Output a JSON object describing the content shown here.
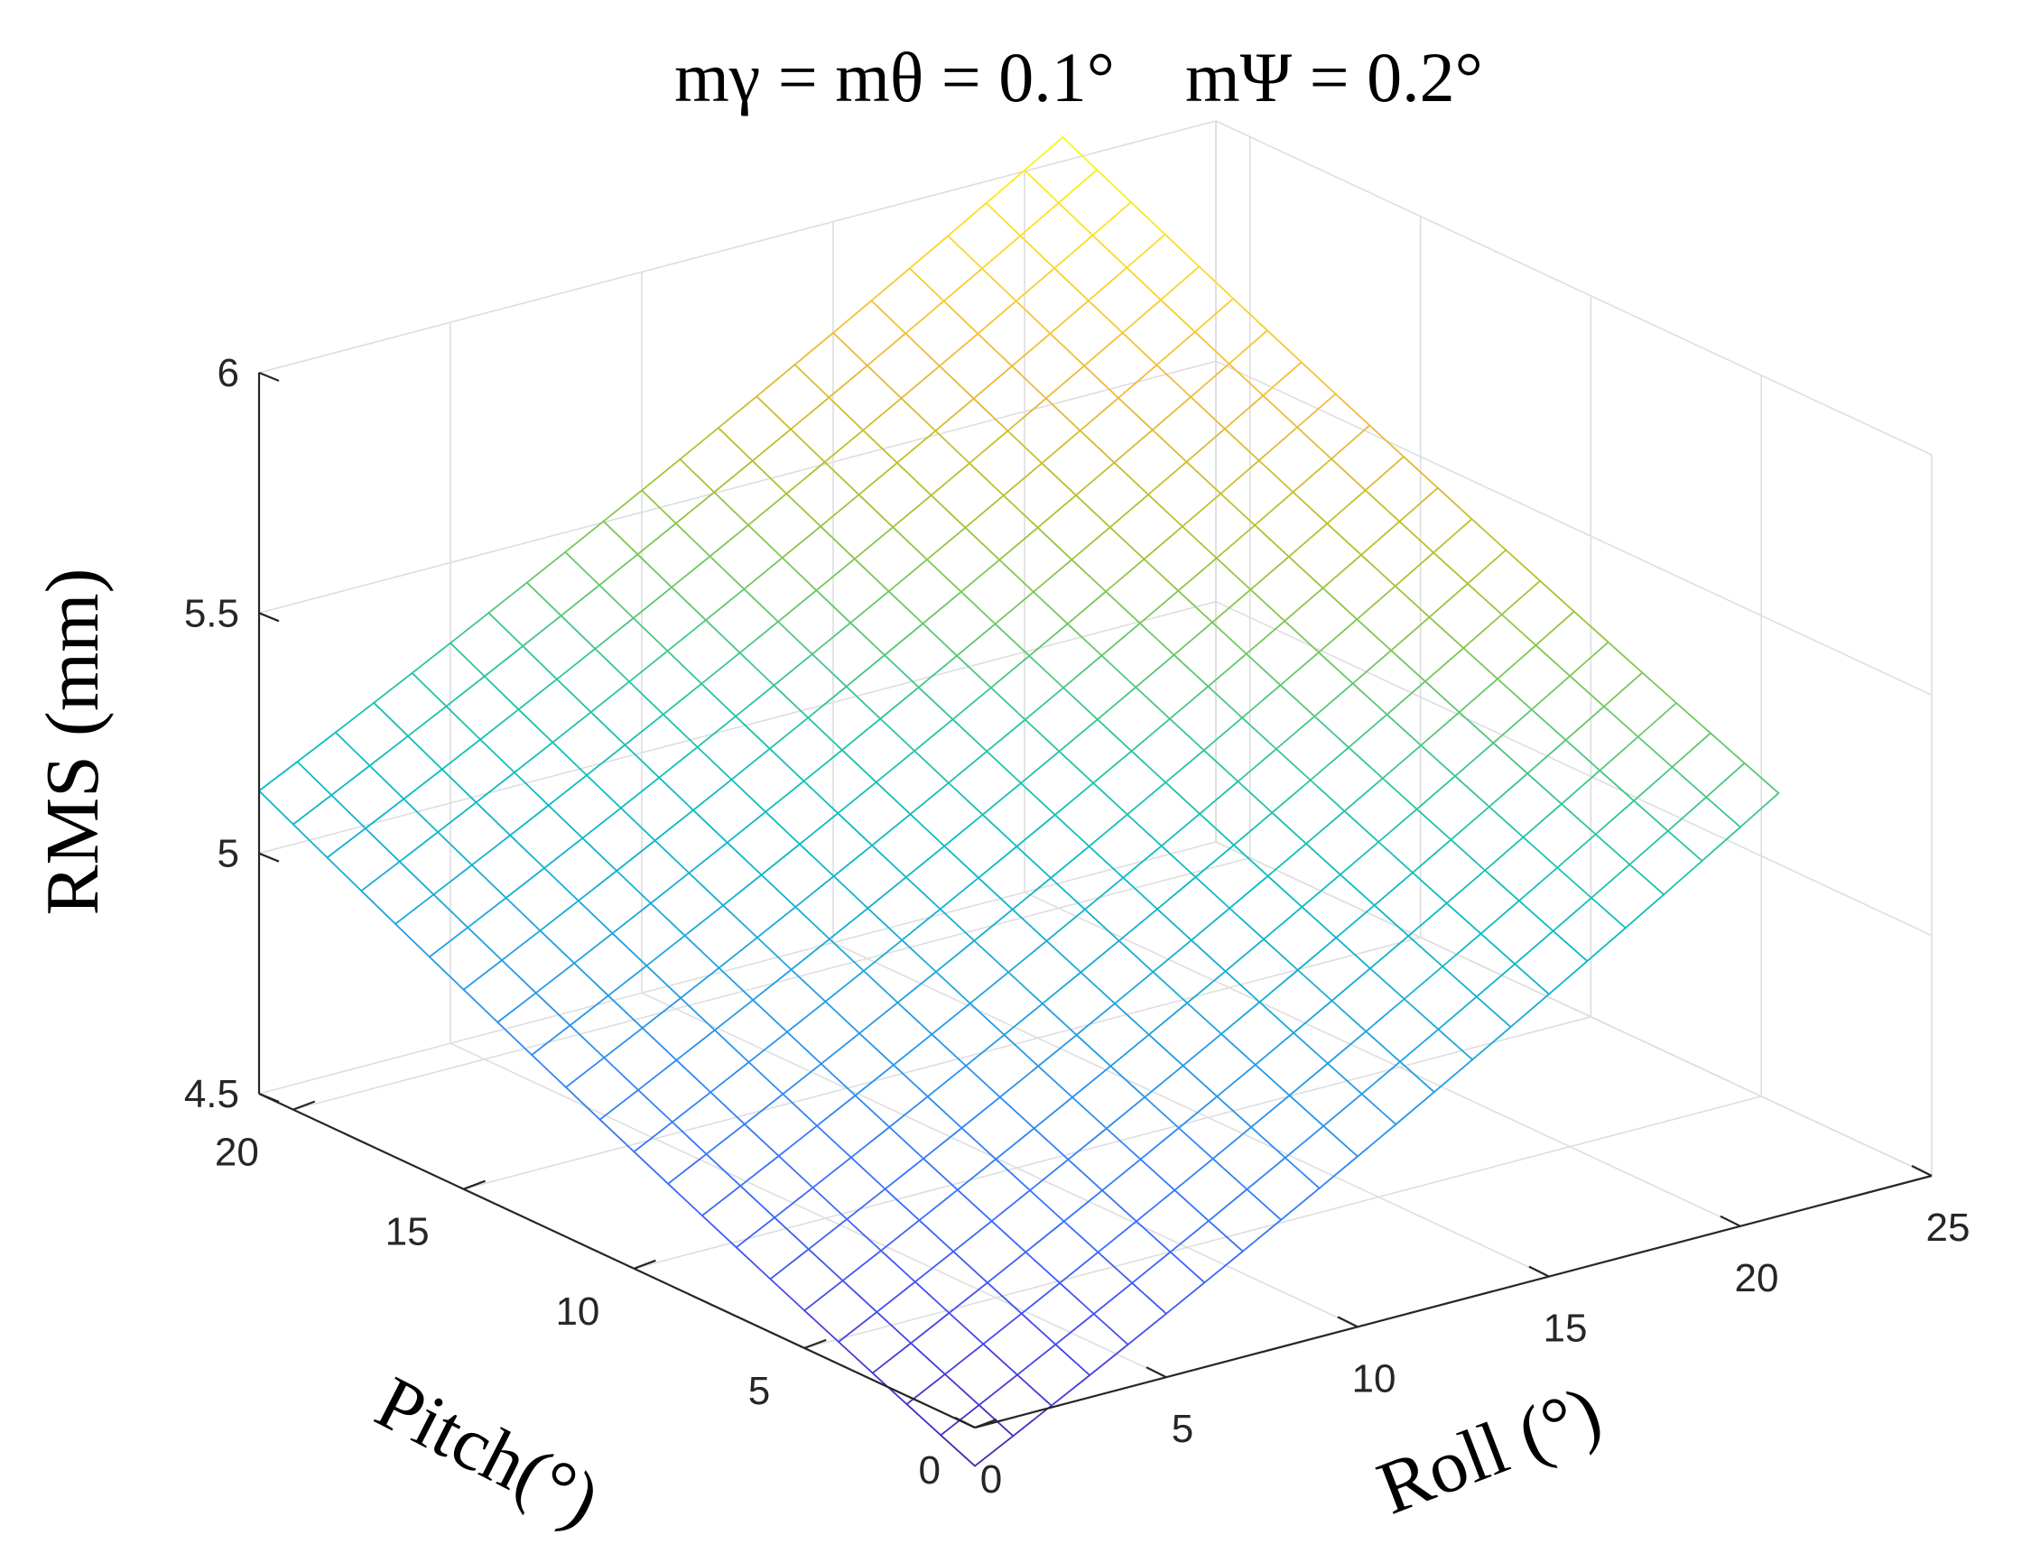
{
  "chart_data": {
    "type": "surface",
    "title": "mγ = mθ = 0.1°    mΨ = 0.2°",
    "xlabel": "Roll (°)",
    "ylabel": "Pitch(°)",
    "zlabel": "RMS (mm)",
    "x_range": [
      0,
      25
    ],
    "y_range": [
      0,
      21
    ],
    "zlim": [
      4.5,
      6
    ],
    "x_ticks": [
      0,
      5,
      10,
      15,
      20,
      25
    ],
    "y_ticks": [
      0,
      5,
      10,
      15,
      20
    ],
    "z_ticks": [
      4.5,
      5,
      5.5,
      6
    ],
    "x_tick_labels": [
      "0",
      "5",
      "10",
      "15",
      "20",
      "25"
    ],
    "y_tick_labels": [
      "0",
      "5",
      "10",
      "15",
      "20"
    ],
    "z_tick_labels": [
      "4.5",
      "5",
      "5.5",
      "6"
    ],
    "grid": true,
    "colormap": "parula",
    "mesh": {
      "x_steps": 21,
      "y_steps": 21
    },
    "corner_values": [
      {
        "roll": 0,
        "pitch": 0,
        "rms": 4.42
      },
      {
        "roll": 0,
        "pitch": 21,
        "rms": 5.13
      },
      {
        "roll": 21,
        "pitch": 0,
        "rms": 5.38
      },
      {
        "roll": 21,
        "pitch": 21,
        "rms": 6.05
      }
    ]
  },
  "colors": {
    "parula": [
      "#3e26a8",
      "#4743e8",
      "#3b6cfc",
      "#2d8ef0",
      "#1da7dc",
      "#09bcc3",
      "#2bc59e",
      "#73c860",
      "#b8c12a",
      "#f0b93b",
      "#fbd72c",
      "#f9fb14"
    ]
  }
}
